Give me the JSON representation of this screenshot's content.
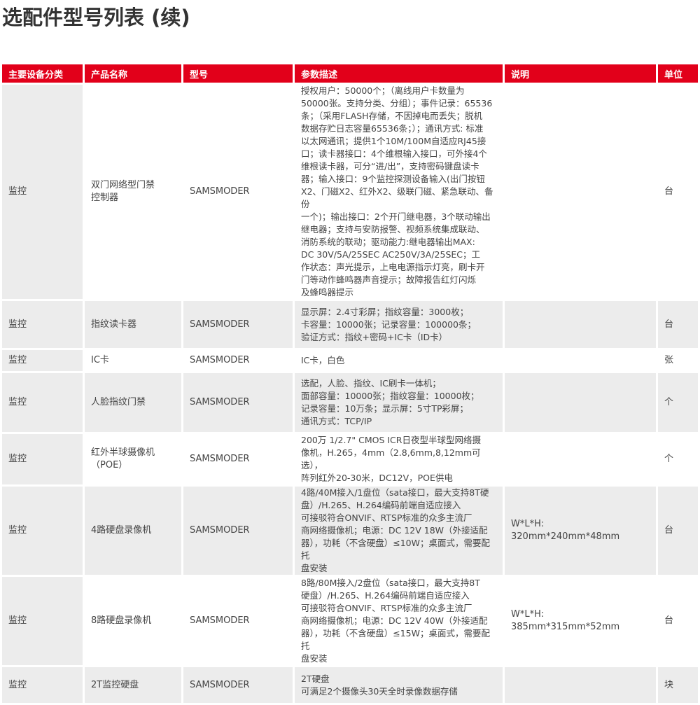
{
  "title": "选配件型号列表 (续)",
  "header_color": "#e2001a",
  "columns": [
    "主要设备分类",
    "产品名称",
    "型号",
    "参数描述",
    "说明",
    "单位"
  ],
  "rows": [
    {
      "category": "监控",
      "name": "双门网络型门禁\n控制器",
      "model": "SAMSMODER",
      "params": "授权用户：50000个；（离线用户卡数量为\n50000张。支持分类、分组）；事件记录：65536\n条；（采用FLASH存储，不因掉电而丢失；脱机\n数据存贮日志容量65536条；）；通讯方式: 标准\n以太网通讯；提供1个10M/100M自适应RJ45接\n口；读卡器接口：4个维根输入接口，可外接4个\n维根读卡器，可分“进/出”，支持密码键盘读卡\n器；输入接口：9个监控探测设备输入(出门按钮\nX2、门磁X2、红外X2、级联门磁、紧急联动、备份\n一个)；输出接口：2个开门继电器，3个联动输出\n继电器；支持与安防报警、视频系统集成联动、\n消防系统的联动；驱动能力:继电器输出MAX:\nDC 30V/5A/25SEC  AC250V/3A/25SEC；工\n作状态：声光提示，上电电源指示灯亮，刷卡开\n门等动作蜂鸣器声音提示；故障报告红灯闪烁\n及蜂鸣器提示",
      "note": "",
      "unit": "台"
    },
    {
      "category": "监控",
      "name": "指纹读卡器",
      "model": "SAMSMODER",
      "params": "显示屏：2.4寸彩屏；指纹容量：3000枚；\n卡容量：10000张；记录容量：100000条；\n验证方式：指纹+密码+IC卡（ID卡）",
      "note": "",
      "unit": "台"
    },
    {
      "category": "监控",
      "name": "IC卡",
      "model": "SAMSMODER",
      "params": "IC卡，白色",
      "note": "",
      "unit": "张"
    },
    {
      "category": "监控",
      "name": "人脸指纹门禁",
      "model": "SAMSMODER",
      "params": "选配，人脸、指纹、IC刷卡一体机；\n面部容量：10000张；指纹容量：10000枚；\n记录容量：10万条；显示屏：5寸TP彩屏；\n通讯方式：TCP/IP",
      "note": "",
      "unit": "个"
    },
    {
      "category": "监控",
      "name": "红外半球摄像机\n（POE）",
      "model": "SAMSMODER",
      "params": "200万 1/2.7\" CMOS ICR日夜型半球型网络摄\n像机，H.265，4mm（2.8,6mm,8,12mm可选），\n阵列红外20-30米，DC12V，POE供电",
      "note": "",
      "unit": "个"
    },
    {
      "category": "监控",
      "name": "4路硬盘录像机",
      "model": "SAMSMODER",
      "params": "4路/40M接入/1盘位（sata接口，最大支持8T硬\n盘）/H.265、H.264编码前端自适应接入\n可接驳符合ONVIF、RTSP标准的众多主流厂\n商网络摄像机；电源：DC 12V 18W（外接适配\n器），功耗（不含硬盘）≤10W；桌面式，需要配托\n盘安装",
      "note": "W*L*H:\n320mm*240mm*48mm",
      "unit": "台"
    },
    {
      "category": "监控",
      "name": "8路硬盘录像机",
      "model": "SAMSMODER",
      "params": "8路/80M接入/2盘位（sata接口，最大支持8T\n硬盘）/H.265、H.264编码前端自适应接入\n可接驳符合ONVIF、RTSP标准的众多主流厂\n商网络摄像机；电源：DC 12V 40W（外接适配\n器），功耗（不含硬盘）≤15W；桌面式，需要配托\n盘安装",
      "note": "W*L*H:\n385mm*315mm*52mm",
      "unit": "台"
    },
    {
      "category": "监控",
      "name": "2T监控硬盘",
      "model": "SAMSMODER",
      "params": "2T硬盘\n可满足2个摄像头30天全时录像数据存储",
      "note": "",
      "unit": "块"
    }
  ]
}
